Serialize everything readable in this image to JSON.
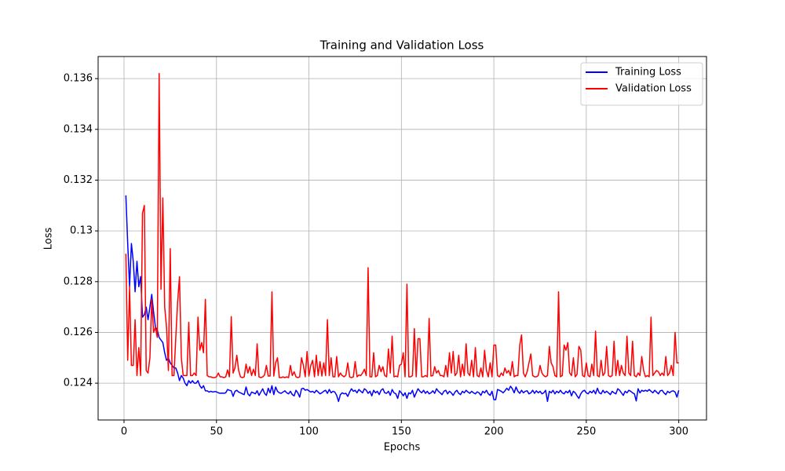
{
  "chart_data": {
    "type": "line",
    "title": "Training and Validation Loss",
    "x_label": "Epochs",
    "y_label": "Loss",
    "x": [
      1,
      2,
      3,
      4,
      5,
      6,
      7,
      8,
      9,
      10,
      11,
      12,
      13,
      14,
      15,
      16,
      17,
      18,
      19,
      20,
      21,
      22,
      23,
      24,
      25,
      26,
      27,
      28,
      29,
      30,
      31,
      32,
      33,
      34,
      35,
      36,
      37,
      38,
      39,
      40,
      41,
      42,
      43,
      44,
      45,
      46,
      47,
      48,
      49,
      50,
      51,
      52,
      53,
      54,
      55,
      56,
      57,
      58,
      59,
      60,
      61,
      62,
      63,
      64,
      65,
      66,
      67,
      68,
      69,
      70,
      71,
      72,
      73,
      74,
      75,
      76,
      77,
      78,
      79,
      80,
      81,
      82,
      83,
      84,
      85,
      86,
      87,
      88,
      89,
      90,
      91,
      92,
      93,
      94,
      95,
      96,
      97,
      98,
      99,
      100,
      101,
      102,
      103,
      104,
      105,
      106,
      107,
      108,
      109,
      110,
      111,
      112,
      113,
      114,
      115,
      116,
      117,
      118,
      119,
      120,
      121,
      122,
      123,
      124,
      125,
      126,
      127,
      128,
      129,
      130,
      131,
      132,
      133,
      134,
      135,
      136,
      137,
      138,
      139,
      140,
      141,
      142,
      143,
      144,
      145,
      146,
      147,
      148,
      149,
      150,
      151,
      152,
      153,
      154,
      155,
      156,
      157,
      158,
      159,
      160,
      161,
      162,
      163,
      164,
      165,
      166,
      167,
      168,
      169,
      170,
      171,
      172,
      173,
      174,
      175,
      176,
      177,
      178,
      179,
      180,
      181,
      182,
      183,
      184,
      185,
      186,
      187,
      188,
      189,
      190,
      191,
      192,
      193,
      194,
      195,
      196,
      197,
      198,
      199,
      200,
      201,
      202,
      203,
      204,
      205,
      206,
      207,
      208,
      209,
      210,
      211,
      212,
      213,
      214,
      215,
      216,
      217,
      218,
      219,
      220,
      221,
      222,
      223,
      224,
      225,
      226,
      227,
      228,
      229,
      230,
      231,
      232,
      233,
      234,
      235,
      236,
      237,
      238,
      239,
      240,
      241,
      242,
      243,
      244,
      245,
      246,
      247,
      248,
      249,
      250,
      251,
      252,
      253,
      254,
      255,
      256,
      257,
      258,
      259,
      260,
      261,
      262,
      263,
      264,
      265,
      266,
      267,
      268,
      269,
      270,
      271,
      272,
      273,
      274,
      275,
      276,
      277,
      278,
      279,
      280,
      281,
      282,
      283,
      284,
      285,
      286,
      287,
      288,
      289,
      290,
      291,
      292,
      293,
      294,
      295,
      296,
      297,
      298,
      299,
      300
    ],
    "series": [
      {
        "name": "Training Loss",
        "color": "#0000ff",
        "values": [
          0.1314,
          0.1295,
          0.1278,
          0.1295,
          0.1288,
          0.1276,
          0.1288,
          0.1278,
          0.1282,
          0.1266,
          0.1267,
          0.127,
          0.1265,
          0.127,
          0.1275,
          0.1268,
          0.1262,
          0.1261,
          0.1258,
          0.1257,
          0.1256,
          0.1252,
          0.1249,
          0.125,
          0.1248,
          0.1247,
          0.1246,
          0.1246,
          0.1244,
          0.1241,
          0.1243,
          0.1242,
          0.124,
          0.1239,
          0.1241,
          0.124,
          0.1241,
          0.124,
          0.124,
          0.1241,
          0.1239,
          0.1238,
          0.1239,
          0.1237,
          0.1237,
          0.12365,
          0.12368,
          0.12365,
          0.12367,
          0.12366,
          0.12362,
          0.1236,
          0.12361,
          0.1236,
          0.12362,
          0.12375,
          0.12372,
          0.1237,
          0.12348,
          0.12368,
          0.12372,
          0.12365,
          0.12362,
          0.12358,
          0.12355,
          0.12385,
          0.12358,
          0.1235,
          0.12365,
          0.12362,
          0.12358,
          0.1237,
          0.12352,
          0.12365,
          0.12378,
          0.1236,
          0.12352,
          0.1238,
          0.12362,
          0.1239,
          0.12355,
          0.12385,
          0.12368,
          0.12362,
          0.1236,
          0.12365,
          0.1237,
          0.12362,
          0.12358,
          0.12368,
          0.12355,
          0.1235,
          0.12372,
          0.12362,
          0.12345,
          0.12378,
          0.1238,
          0.12372,
          0.12375,
          0.1237,
          0.12365,
          0.12368,
          0.12362,
          0.12372,
          0.12365,
          0.12358,
          0.12362,
          0.12368,
          0.12372,
          0.1236,
          0.12375,
          0.12362,
          0.12368,
          0.12365,
          0.12352,
          0.12328,
          0.12355,
          0.12362,
          0.12358,
          0.1236,
          0.12348,
          0.12365,
          0.12378,
          0.12368,
          0.12372,
          0.12362,
          0.12375,
          0.12368,
          0.12362,
          0.12378,
          0.12372,
          0.1236,
          0.12368,
          0.1235,
          0.12372,
          0.12362,
          0.12368,
          0.12355,
          0.12372,
          0.12378,
          0.12362,
          0.1236,
          0.12368,
          0.12352,
          0.12375,
          0.12362,
          0.12358,
          0.1234,
          0.1237,
          0.12362,
          0.1235,
          0.12362,
          0.1234,
          0.12362,
          0.12358,
          0.12372,
          0.12345,
          0.12362,
          0.12378,
          0.12368,
          0.12362,
          0.12372,
          0.1236,
          0.12368,
          0.12358,
          0.12362,
          0.1237,
          0.1236,
          0.12378,
          0.12368,
          0.12362,
          0.12355,
          0.12368,
          0.12372,
          0.12358,
          0.12368,
          0.12362,
          0.12352,
          0.12365,
          0.12372,
          0.1236,
          0.12355,
          0.12368,
          0.12362,
          0.12372,
          0.12365,
          0.1236,
          0.12368,
          0.12362,
          0.12358,
          0.12366,
          0.12362,
          0.12352,
          0.12368,
          0.12362,
          0.12372,
          0.12358,
          0.12352,
          0.12368,
          0.12335,
          0.12335,
          0.12375,
          0.12372,
          0.12368,
          0.12362,
          0.1237,
          0.1238,
          0.12372,
          0.12388,
          0.12378,
          0.12362,
          0.12385,
          0.12368,
          0.1236,
          0.12372,
          0.12362,
          0.12368,
          0.1237,
          0.12358,
          0.12362,
          0.12372,
          0.1236,
          0.1237,
          0.12362,
          0.12368,
          0.12358,
          0.12362,
          0.12372,
          0.12328,
          0.12368,
          0.12362,
          0.12372,
          0.12358,
          0.12368,
          0.12362,
          0.12372,
          0.12362,
          0.12358,
          0.12368,
          0.12362,
          0.12372,
          0.1235,
          0.12368,
          0.12362,
          0.1235,
          0.1234,
          0.12358,
          0.12368,
          0.12372,
          0.12362,
          0.12358,
          0.12368,
          0.12362,
          0.12372,
          0.12358,
          0.1238,
          0.12362,
          0.12358,
          0.12372,
          0.12362,
          0.12368,
          0.12362,
          0.12355,
          0.12368,
          0.12362,
          0.12358,
          0.12378,
          0.12372,
          0.12362,
          0.12352,
          0.12368,
          0.12362,
          0.12372,
          0.12368,
          0.12362,
          0.12358,
          0.1233,
          0.12378,
          0.12362,
          0.12372,
          0.12368,
          0.12372,
          0.12368,
          0.12375,
          0.12368,
          0.12362,
          0.12372,
          0.12365,
          0.12358,
          0.1237,
          0.12372,
          0.12362,
          0.12355,
          0.12368,
          0.12362,
          0.12368,
          0.1237,
          0.12365,
          0.12345,
          0.12372
        ]
      },
      {
        "name": "Validation Loss",
        "color": "#ff0000",
        "values": [
          0.1291,
          0.1249,
          0.1278,
          0.1247,
          0.1247,
          0.1265,
          0.1243,
          0.1254,
          0.1243,
          0.1307,
          0.131,
          0.1245,
          0.1244,
          0.125,
          0.1273,
          0.126,
          0.1262,
          0.1258,
          0.1362,
          0.1277,
          0.1313,
          0.127,
          0.1262,
          0.1245,
          0.1293,
          0.1243,
          0.1243,
          0.1258,
          0.1272,
          0.1282,
          0.125,
          0.1243,
          0.1243,
          0.1243,
          0.1264,
          0.1243,
          0.1243,
          0.1244,
          0.1243,
          0.1266,
          0.1253,
          0.1256,
          0.1252,
          0.1273,
          0.1243,
          0.12425,
          0.12425,
          0.12422,
          0.12422,
          0.12425,
          0.1244,
          0.12425,
          0.12425,
          0.12422,
          0.12425,
          0.12452,
          0.12425,
          0.12662,
          0.1244,
          0.1246,
          0.1251,
          0.1245,
          0.12425,
          0.12422,
          0.12425,
          0.12475,
          0.1244,
          0.12465,
          0.1243,
          0.12455,
          0.1243,
          0.12555,
          0.12425,
          0.12422,
          0.12425,
          0.12432,
          0.1247,
          0.12428,
          0.12428,
          0.1276,
          0.12428,
          0.1248,
          0.125,
          0.12422,
          0.12422,
          0.12425,
          0.12422,
          0.12425,
          0.12422,
          0.1247,
          0.1243,
          0.12445,
          0.12425,
          0.12422,
          0.12425,
          0.125,
          0.1247,
          0.12425,
          0.12525,
          0.12428,
          0.1247,
          0.1249,
          0.12425,
          0.1251,
          0.1243,
          0.12485,
          0.12428,
          0.1248,
          0.1243,
          0.1265,
          0.1243,
          0.125,
          0.12425,
          0.12425,
          0.12505,
          0.12425,
          0.1244,
          0.1243,
          0.12425,
          0.12432,
          0.1248,
          0.12425,
          0.12422,
          0.12425,
          0.12485,
          0.12425,
          0.12432,
          0.1243,
          0.1244,
          0.12455,
          0.1243,
          0.12855,
          0.12425,
          0.12425,
          0.1252,
          0.12425,
          0.1243,
          0.1247,
          0.12445,
          0.12465,
          0.1243,
          0.12425,
          0.12535,
          0.1244,
          0.12585,
          0.12425,
          0.12428,
          0.12425,
          0.1247,
          0.12475,
          0.1252,
          0.12425,
          0.1279,
          0.12425,
          0.12425,
          0.1243,
          0.12615,
          0.12425,
          0.12575,
          0.12575,
          0.12425,
          0.12425,
          0.1243,
          0.12425,
          0.12655,
          0.12428,
          0.1243,
          0.12465,
          0.1244,
          0.1245,
          0.1243,
          0.1243,
          0.12425,
          0.1247,
          0.12425,
          0.1252,
          0.1244,
          0.12525,
          0.1243,
          0.1244,
          0.1251,
          0.12425,
          0.12475,
          0.1243,
          0.12555,
          0.1244,
          0.1243,
          0.1249,
          0.12425,
          0.1254,
          0.1243,
          0.12425,
          0.1246,
          0.12425,
          0.1253,
          0.1245,
          0.12425,
          0.1248,
          0.12425,
          0.1255,
          0.1255,
          0.1243,
          0.12425,
          0.1244,
          0.1243,
          0.1246,
          0.1244,
          0.1245,
          0.1243,
          0.12485,
          0.12425,
          0.1243,
          0.1243,
          0.1255,
          0.1259,
          0.1244,
          0.12425,
          0.12445,
          0.1248,
          0.12515,
          0.1243,
          0.12425,
          0.12425,
          0.1243,
          0.1247,
          0.1244,
          0.1243,
          0.12425,
          0.1243,
          0.12545,
          0.1248,
          0.12465,
          0.1243,
          0.12425,
          0.1276,
          0.12425,
          0.1243,
          0.1255,
          0.1253,
          0.1256,
          0.1244,
          0.1243,
          0.125,
          0.12425,
          0.12435,
          0.12545,
          0.1253,
          0.1243,
          0.12425,
          0.1248,
          0.1243,
          0.12425,
          0.12475,
          0.1243,
          0.12605,
          0.1243,
          0.12425,
          0.1249,
          0.1243,
          0.1244,
          0.12545,
          0.1243,
          0.12425,
          0.1243,
          0.12565,
          0.1243,
          0.1249,
          0.1243,
          0.1247,
          0.1244,
          0.1243,
          0.12585,
          0.1244,
          0.1243,
          0.12565,
          0.1243,
          0.12425,
          0.1244,
          0.1243,
          0.12505,
          0.1245,
          0.12425,
          0.1243,
          0.12425,
          0.1266,
          0.1243,
          0.1244,
          0.1245,
          0.12445,
          0.1243,
          0.1244,
          0.1243,
          0.12505,
          0.1243,
          0.1244,
          0.1247,
          0.1243,
          0.126,
          0.1248,
          0.1248
        ]
      }
    ],
    "xlim": [
      -14,
      315
    ],
    "xticks": [
      0,
      50,
      100,
      150,
      200,
      250,
      300
    ],
    "ylim": [
      0.12255,
      0.13687
    ],
    "yticks": [
      0.124,
      0.126,
      0.128,
      0.13,
      0.132,
      0.134,
      0.136
    ],
    "grid": true,
    "legend": "upper right"
  }
}
